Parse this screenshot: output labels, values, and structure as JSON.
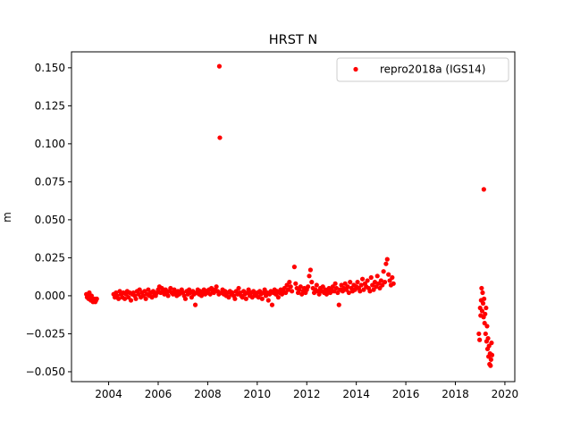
{
  "chart_data": {
    "type": "scatter",
    "title": "HRST N",
    "xlabel": "",
    "ylabel": "m",
    "xlim": [
      2002.5,
      2020.4
    ],
    "ylim": [
      -0.0565,
      0.1605
    ],
    "xticks": [
      2004,
      2006,
      2008,
      2010,
      2012,
      2014,
      2016,
      2018,
      2020
    ],
    "xtick_labels": [
      "2004",
      "2006",
      "2008",
      "2010",
      "2012",
      "2014",
      "2016",
      "2018",
      "2020"
    ],
    "yticks": [
      -0.05,
      -0.025,
      0.0,
      0.025,
      0.05,
      0.075,
      0.1,
      0.125,
      0.15
    ],
    "ytick_labels": [
      "−0.050",
      "−0.025",
      "0.000",
      "0.025",
      "0.050",
      "0.075",
      "0.100",
      "0.125",
      "0.150"
    ],
    "grid": false,
    "legend_position": "top-right",
    "series": [
      {
        "name": "repro2018a (IGS14)",
        "color": "#ff0000",
        "marker": "circle",
        "x": [
          2003.1,
          2003.13,
          2003.16,
          2003.19,
          2003.22,
          2003.25,
          2003.28,
          2003.31,
          2003.34,
          2003.37,
          2003.4,
          2003.43,
          2003.46,
          2003.49,
          2003.52,
          2004.2,
          2004.25,
          2004.3,
          2004.35,
          2004.4,
          2004.45,
          2004.5,
          2004.55,
          2004.6,
          2004.65,
          2004.7,
          2004.75,
          2004.8,
          2004.85,
          2004.9,
          2004.95,
          2005.0,
          2005.05,
          2005.1,
          2005.15,
          2005.2,
          2005.25,
          2005.3,
          2005.35,
          2005.4,
          2005.45,
          2005.5,
          2005.55,
          2005.6,
          2005.65,
          2005.7,
          2005.75,
          2005.8,
          2005.85,
          2005.9,
          2005.95,
          2006.0,
          2006.05,
          2006.1,
          2006.15,
          2006.2,
          2006.25,
          2006.3,
          2006.35,
          2006.4,
          2006.45,
          2006.5,
          2006.55,
          2006.6,
          2006.65,
          2006.7,
          2006.75,
          2006.8,
          2006.85,
          2006.9,
          2006.95,
          2007.0,
          2007.05,
          2007.1,
          2007.15,
          2007.2,
          2007.25,
          2007.3,
          2007.35,
          2007.4,
          2007.45,
          2007.5,
          2007.55,
          2007.6,
          2007.65,
          2007.7,
          2007.75,
          2007.8,
          2007.85,
          2007.9,
          2007.95,
          2008.0,
          2008.05,
          2008.1,
          2008.15,
          2008.2,
          2008.25,
          2008.3,
          2008.35,
          2008.4,
          2008.45,
          2008.47,
          2008.49,
          2008.55,
          2008.6,
          2008.65,
          2008.7,
          2008.75,
          2008.8,
          2008.85,
          2008.9,
          2008.95,
          2009.0,
          2009.05,
          2009.1,
          2009.15,
          2009.2,
          2009.25,
          2009.3,
          2009.35,
          2009.4,
          2009.45,
          2009.5,
          2009.55,
          2009.6,
          2009.65,
          2009.7,
          2009.75,
          2009.8,
          2009.85,
          2009.9,
          2009.95,
          2010.0,
          2010.05,
          2010.1,
          2010.15,
          2010.2,
          2010.25,
          2010.3,
          2010.35,
          2010.4,
          2010.45,
          2010.5,
          2010.55,
          2010.6,
          2010.65,
          2010.7,
          2010.75,
          2010.8,
          2010.85,
          2010.9,
          2010.95,
          2011.0,
          2011.05,
          2011.1,
          2011.15,
          2011.2,
          2011.25,
          2011.3,
          2011.35,
          2011.4,
          2011.5,
          2011.55,
          2011.6,
          2011.65,
          2011.7,
          2011.75,
          2011.8,
          2011.85,
          2011.9,
          2011.95,
          2012.0,
          2012.05,
          2012.1,
          2012.15,
          2012.2,
          2012.25,
          2012.3,
          2012.35,
          2012.4,
          2012.45,
          2012.5,
          2012.55,
          2012.6,
          2012.65,
          2012.7,
          2012.75,
          2012.8,
          2012.85,
          2012.9,
          2012.95,
          2013.0,
          2013.05,
          2013.1,
          2013.15,
          2013.2,
          2013.25,
          2013.3,
          2013.35,
          2013.4,
          2013.45,
          2013.5,
          2013.55,
          2013.6,
          2013.65,
          2013.7,
          2013.75,
          2013.8,
          2013.85,
          2013.9,
          2013.95,
          2014.0,
          2014.05,
          2014.1,
          2014.15,
          2014.2,
          2014.25,
          2014.3,
          2014.35,
          2014.4,
          2014.45,
          2014.5,
          2014.55,
          2014.6,
          2014.65,
          2014.7,
          2014.75,
          2014.8,
          2014.85,
          2014.9,
          2014.95,
          2015.0,
          2015.05,
          2015.1,
          2015.15,
          2015.2,
          2015.25,
          2015.3,
          2015.35,
          2015.4,
          2015.45,
          2015.5,
          2018.95,
          2018.98,
          2019.0,
          2019.02,
          2019.04,
          2019.06,
          2019.08,
          2019.1,
          2019.12,
          2019.14,
          2019.15,
          2019.16,
          2019.18,
          2019.2,
          2019.22,
          2019.24,
          2019.26,
          2019.28,
          2019.3,
          2019.32,
          2019.34,
          2019.36,
          2019.38,
          2019.4,
          2019.42,
          2019.44,
          2019.46,
          2019.48
        ],
        "y": [
          0.001,
          -0.001,
          0.0,
          -0.002,
          0.002,
          -0.001,
          -0.003,
          0.0,
          -0.002,
          -0.004,
          -0.003,
          -0.002,
          -0.004,
          -0.003,
          -0.002,
          0.001,
          -0.001,
          0.002,
          0.0,
          -0.002,
          0.003,
          0.001,
          -0.001,
          0.002,
          -0.002,
          0.001,
          0.003,
          -0.001,
          0.002,
          -0.003,
          0.001,
          0.002,
          0.0,
          -0.002,
          0.003,
          0.001,
          0.004,
          -0.001,
          0.002,
          0.0,
          0.003,
          -0.002,
          0.001,
          0.004,
          0.0,
          0.002,
          -0.001,
          0.003,
          0.001,
          0.0,
          0.002,
          0.004,
          0.006,
          0.002,
          0.005,
          0.003,
          0.001,
          0.004,
          0.002,
          0.0,
          0.003,
          0.005,
          0.002,
          0.001,
          0.004,
          0.002,
          0.0,
          0.003,
          0.001,
          0.002,
          0.004,
          0.002,
          0.0,
          -0.002,
          0.003,
          0.001,
          0.004,
          0.002,
          -0.001,
          0.003,
          0.001,
          -0.006,
          0.002,
          0.004,
          0.001,
          0.003,
          0.0,
          0.002,
          0.004,
          0.001,
          0.003,
          0.002,
          0.004,
          0.001,
          0.005,
          0.003,
          0.002,
          0.004,
          0.006,
          0.003,
          0.001,
          0.151,
          0.104,
          0.002,
          0.004,
          0.001,
          0.003,
          0.0,
          0.002,
          -0.001,
          0.003,
          0.001,
          0.002,
          0.0,
          -0.002,
          0.003,
          0.001,
          0.005,
          0.002,
          0.0,
          -0.001,
          0.003,
          0.001,
          -0.002,
          0.002,
          0.004,
          0.0,
          0.002,
          -0.001,
          0.003,
          0.001,
          0.0,
          0.002,
          -0.001,
          0.003,
          0.001,
          -0.002,
          0.002,
          0.004,
          0.0,
          0.002,
          -0.003,
          0.001,
          0.003,
          -0.006,
          0.002,
          0.004,
          0.001,
          0.003,
          -0.001,
          0.002,
          0.004,
          0.001,
          0.003,
          0.005,
          0.002,
          0.007,
          0.004,
          0.009,
          0.006,
          0.003,
          0.019,
          0.008,
          0.005,
          0.002,
          0.004,
          0.006,
          0.001,
          0.003,
          0.005,
          0.002,
          0.004,
          0.006,
          0.013,
          0.017,
          0.009,
          0.005,
          0.002,
          0.004,
          0.007,
          0.003,
          0.001,
          0.005,
          0.003,
          0.006,
          0.002,
          0.004,
          0.001,
          0.003,
          0.005,
          0.002,
          0.004,
          0.006,
          0.003,
          0.008,
          0.005,
          0.002,
          -0.006,
          0.004,
          0.007,
          0.003,
          0.005,
          0.008,
          0.004,
          0.006,
          0.002,
          0.009,
          0.005,
          0.003,
          0.007,
          0.004,
          0.006,
          0.009,
          0.005,
          0.003,
          0.007,
          0.011,
          0.004,
          0.008,
          0.006,
          0.01,
          0.005,
          0.003,
          0.012,
          0.007,
          0.004,
          0.009,
          0.006,
          0.013,
          0.008,
          0.005,
          0.01,
          0.007,
          0.016,
          0.009,
          0.021,
          0.024,
          0.014,
          0.01,
          0.007,
          0.012,
          0.008,
          -0.025,
          -0.029,
          -0.008,
          -0.013,
          -0.003,
          0.005,
          -0.01,
          0.002,
          -0.005,
          -0.014,
          0.07,
          -0.002,
          -0.018,
          -0.012,
          -0.025,
          -0.008,
          -0.03,
          -0.02,
          -0.035,
          -0.028,
          -0.04,
          -0.033,
          -0.045,
          -0.038,
          -0.046,
          -0.042,
          -0.031,
          -0.039
        ]
      }
    ]
  }
}
